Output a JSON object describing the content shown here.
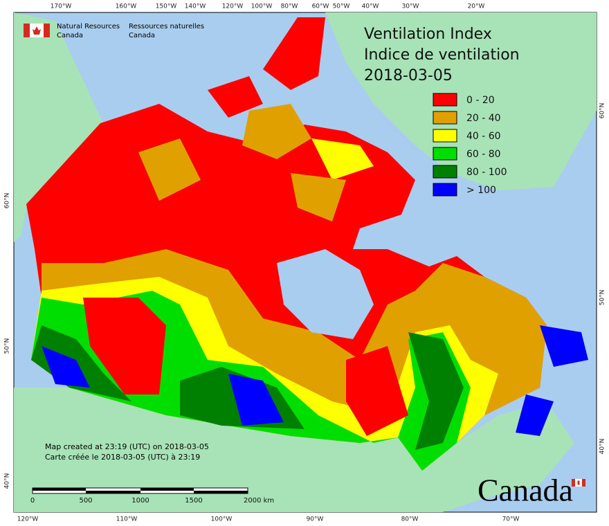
{
  "agency": {
    "en_line1": "Natural Resources",
    "en_line2": "Canada",
    "fr_line1": "Ressources naturelles",
    "fr_line2": "Canada"
  },
  "title": [
    "Ventilation Index",
    "Indice de ventilation",
    "2018-03-05"
  ],
  "legend": [
    {
      "label": "0 - 20",
      "color": "#ff0000"
    },
    {
      "label": "20 - 40",
      "color": "#e0a000"
    },
    {
      "label": "40 - 60",
      "color": "#ffff00"
    },
    {
      "label": "60 - 80",
      "color": "#00dd00"
    },
    {
      "label": "80 - 100",
      "color": "#008000"
    },
    {
      "label": "> 100",
      "color": "#0000ff"
    }
  ],
  "graticule": {
    "top": [
      "170°W",
      "160°W",
      "150°W",
      "140°W",
      "120°W",
      "100°W",
      "80°W",
      "60°W",
      "50°W",
      "40°W",
      "30°W",
      "20°W"
    ],
    "bottom": [
      "120°W",
      "110°W",
      "100°W",
      "90°W",
      "80°W",
      "70°W"
    ],
    "left": [
      "60°N",
      "50°N",
      "40°N"
    ],
    "right": [
      "60°N",
      "50°N",
      "40°N"
    ]
  },
  "footer": {
    "created_en": "Map created at 23:19 (UTC) on 2018-03-05",
    "created_fr": "Carte créée le 2018-03-05 (UTC) à 23:19"
  },
  "scale_bar": [
    "0",
    "500",
    "1000",
    "1500",
    "2000 km"
  ],
  "wordmark": "Canada"
}
